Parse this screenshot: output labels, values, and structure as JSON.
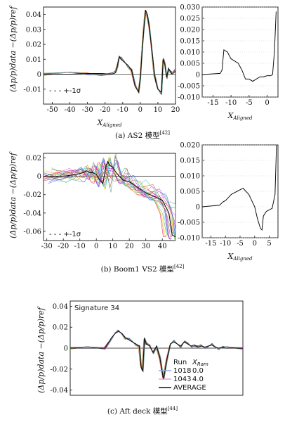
{
  "panels": [
    {
      "caption": "(a) AS2 模型",
      "caption_ref": "[42]",
      "ylabel": "(Δp/p)data −(Δp/p)ref",
      "left": {
        "xlabel": "X_Aligned",
        "xlim": [
          -55,
          20
        ],
        "ylim": [
          -0.02,
          0.045
        ],
        "xticks": [
          "-50",
          "-40",
          "-30",
          "-20",
          "-10",
          "0",
          "10",
          "20"
        ],
        "yticks": [
          "-0.01",
          "0",
          "0.01",
          "0.02",
          "0.03",
          "0.04"
        ],
        "legend": "- - - +-1σ"
      },
      "right": {
        "xlabel": "X_Aligned",
        "xlim": [
          -18,
          3
        ],
        "ylim": [
          -0.01,
          0.03
        ],
        "xticks": [
          "-15",
          "-10",
          "-5",
          "0"
        ],
        "yticks": [
          "-0.010",
          "-0.005",
          "0",
          "0.005",
          "0.010",
          "0.015",
          "0.020",
          "0.025",
          "0.030"
        ]
      }
    },
    {
      "caption": "(b) Boom1 VS2 模型",
      "caption_ref": "[42]",
      "ylabel": "(Δp/p)data −(Δp/p)ref",
      "left": {
        "xlabel": "X_Aligned",
        "xlim": [
          -32,
          48
        ],
        "ylim": [
          -0.07,
          0.025
        ],
        "xticks": [
          "-30",
          "-20",
          "-10",
          "0",
          "10",
          "20",
          "30",
          "40"
        ],
        "yticks": [
          "-0.06",
          "-0.04",
          "-0.02",
          "0",
          "0.02"
        ],
        "legend": "- - - +-1σ"
      },
      "right": {
        "xlabel": "X_Aligned",
        "xlim": [
          -18,
          8
        ],
        "ylim": [
          -0.01,
          0.02
        ],
        "xticks": [
          "-15",
          "-10",
          "-5",
          "0",
          "5"
        ],
        "yticks": [
          "-0.010",
          "-0.005",
          "0",
          "0.005",
          "0.010",
          "0.015",
          "0.020"
        ]
      }
    },
    {
      "caption": "(c) Aft deck 模型",
      "caption_ref": "[44]",
      "ylabel": "(Δp/p)data −(Δp/p)ref",
      "title": "Signature 34",
      "yticks": [
        "-0.04",
        "-0.02",
        "0",
        "0.02",
        "0.04"
      ],
      "ylim": [
        -0.045,
        0.045
      ],
      "legend": {
        "header_run": "Run",
        "header_x": "X",
        "header_x_sub": "Ram",
        "rows": [
          {
            "run": "1018",
            "x": "0.0",
            "color": "#8fa8e8"
          },
          {
            "run": "1043",
            "x": "4.0",
            "color": "#e9a0c8"
          },
          {
            "run": "",
            "x": "AVERAGE",
            "color": "#111111"
          }
        ]
      }
    }
  ],
  "chart_data": [
    {
      "type": "line",
      "title": "",
      "xlabel": "X_Aligned",
      "ylabel": "(Δp/p)data −(Δp/p)ref",
      "xlim": [
        -55,
        20
      ],
      "ylim": [
        -0.02,
        0.045
      ],
      "series": [
        {
          "name": "",
          "x": [
            -55,
            -40,
            -30,
            -22,
            -16,
            -14,
            -13,
            -12,
            -11,
            -9,
            -7,
            -5,
            -3,
            -1,
            0,
            1,
            2,
            3,
            4,
            5,
            6,
            7,
            8,
            9,
            10,
            12,
            13,
            14,
            15,
            16,
            18,
            20
          ],
          "y": [
            0,
            0,
            0.0005,
            0.0005,
            0,
            0.001,
            0.006,
            0.012,
            0.01,
            0.008,
            0.006,
            0.003,
            -0.008,
            -0.012,
            -0.002,
            0.015,
            0.03,
            0.043,
            0.04,
            0.032,
            0.022,
            0.012,
            0.0,
            -0.006,
            -0.01,
            -0.012,
            0.01,
            0.006,
            -0.002,
            0.004,
            0.0,
            0.002
          ]
        }
      ]
    },
    {
      "type": "line",
      "title": "",
      "xlabel": "X_Aligned",
      "xlim": [
        -18,
        3
      ],
      "ylim": [
        -0.01,
        0.03
      ],
      "series": [
        {
          "name": "",
          "x": [
            -18,
            -13,
            -12.5,
            -12,
            -11,
            -10,
            -9,
            -8,
            -7,
            -6,
            -5,
            -4,
            -3,
            -2,
            -1,
            0,
            1,
            1.5,
            2,
            2.5
          ],
          "y": [
            0,
            0.0005,
            0.002,
            0.011,
            0.01,
            0.007,
            0.006,
            0.005,
            0.002,
            -0.002,
            -0.002,
            -0.003,
            -0.002,
            -0.001,
            -0.001,
            -0.0005,
            -0.0005,
            0,
            0.01,
            0.028
          ]
        }
      ]
    },
    {
      "type": "line",
      "title": "",
      "xlabel": "X_Aligned",
      "ylabel": "(Δp/p)data −(Δp/p)ref",
      "xlim": [
        -32,
        48
      ],
      "ylim": [
        -0.07,
        0.025
      ],
      "series": [
        {
          "name": "",
          "x": [
            -32,
            -20,
            -12,
            -8,
            -6,
            -4,
            -2,
            0,
            2,
            4,
            6,
            7,
            8,
            10,
            12,
            14,
            16,
            20,
            25,
            30,
            35,
            40,
            44,
            46,
            48
          ],
          "y": [
            0,
            0,
            0.002,
            0.004,
            0.006,
            0.004,
            0.004,
            0.002,
            -0.004,
            -0.008,
            0.012,
            0.016,
            0.012,
            0.01,
            0.004,
            0.0,
            -0.004,
            -0.006,
            -0.012,
            -0.018,
            -0.022,
            -0.026,
            -0.04,
            -0.064,
            -0.066
          ]
        }
      ]
    },
    {
      "type": "line",
      "title": "",
      "xlabel": "X_Aligned",
      "xlim": [
        -18,
        8
      ],
      "ylim": [
        -0.01,
        0.02
      ],
      "series": [
        {
          "name": "",
          "x": [
            -18,
            -12,
            -11,
            -10,
            -9,
            -8,
            -7,
            -6,
            -5,
            -4,
            -3,
            -2,
            -1,
            0,
            1,
            2,
            2.5,
            3,
            4,
            5,
            6,
            7,
            7.5
          ],
          "y": [
            0,
            0.0005,
            0.0015,
            0.002,
            0.003,
            0.004,
            0.0045,
            0.005,
            0.0055,
            0.006,
            0.005,
            0.004,
            0.002,
            0.0,
            -0.004,
            -0.007,
            -0.0075,
            -0.003,
            -0.0015,
            -0.001,
            -0.0005,
            0.004,
            0.02
          ]
        }
      ]
    },
    {
      "type": "line",
      "title": "Signature 34",
      "ylabel": "(Δp/p)data −(Δp/p)ref",
      "ylim": [
        -0.045,
        0.045
      ],
      "series": [
        {
          "name": "AVERAGE",
          "x": [
            0,
            10,
            20,
            24,
            26,
            28,
            30,
            32,
            34,
            36,
            38,
            40,
            41,
            42,
            43,
            44,
            46,
            48,
            50,
            52,
            54,
            56,
            58,
            60,
            62,
            64,
            66,
            68,
            70,
            72,
            74,
            76,
            78,
            80,
            82,
            84,
            86,
            88,
            90,
            100
          ],
          "y": [
            0,
            0,
            0,
            0.01,
            0.014,
            0.016,
            0.014,
            0.01,
            0.008,
            0.006,
            0.004,
            0.002,
            -0.018,
            -0.022,
            0.01,
            0.004,
            0.002,
            -0.004,
            0.002,
            -0.01,
            -0.03,
            -0.01,
            0.004,
            0.006,
            0.004,
            0.002,
            0.006,
            0.004,
            0.002,
            0.003,
            0.001,
            0.002,
            0.001,
            0.002,
            0.003,
            0.001,
            0.0,
            0.001,
            0.0,
            0.0
          ]
        }
      ]
    }
  ]
}
